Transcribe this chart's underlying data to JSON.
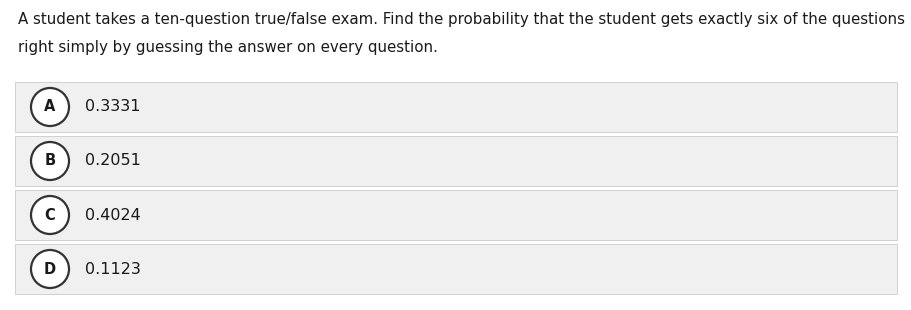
{
  "question_text_line1": "A student takes a ten-question true/false exam. Find the probability that the student gets exactly six of the questions",
  "question_text_line2": "right simply by guessing the answer on every question.",
  "options": [
    {
      "label": "A",
      "text": "0.3331"
    },
    {
      "label": "B",
      "text": "0.2051"
    },
    {
      "label": "C",
      "text": "0.4024"
    },
    {
      "label": "D",
      "text": "0.1123"
    }
  ],
  "bg_color": "#ffffff",
  "option_bg_color": "#f0f0f0",
  "option_border_color": "#d0d0d0",
  "text_color": "#1a1a1a",
  "circle_edge_color": "#333333",
  "circle_face_color": "#ffffff",
  "question_fontsize": 10.8,
  "option_fontsize": 11.5,
  "label_fontsize": 10.5,
  "fig_width": 9.12,
  "fig_height": 3.1,
  "dpi": 100
}
